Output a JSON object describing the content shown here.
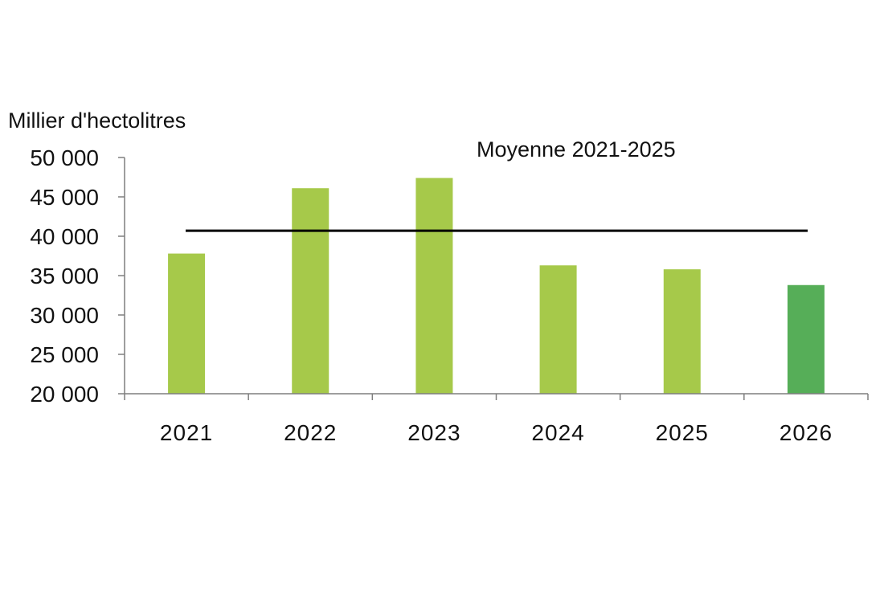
{
  "chart_data": {
    "type": "bar",
    "title": "",
    "xlabel": "",
    "ylabel": "Millier d'hectolitres",
    "ylim": [
      20000,
      50000
    ],
    "yticks": [
      20000,
      25000,
      30000,
      35000,
      40000,
      45000,
      50000
    ],
    "ytick_labels": [
      "20 000",
      "25 000",
      "30 000",
      "35 000",
      "40 000",
      "45 000",
      "50 000"
    ],
    "categories": [
      "2021",
      "2022",
      "2023",
      "2024",
      "2025",
      "2026"
    ],
    "values": [
      37800,
      46100,
      47400,
      36300,
      35800,
      33800
    ],
    "bar_colors": [
      "#a6c94a",
      "#a6c94a",
      "#a6c94a",
      "#a6c94a",
      "#a6c94a",
      "#56ae58"
    ],
    "grid": false,
    "reference_line": {
      "label": "Moyenne 2021-2025",
      "value": 40700,
      "color": "#000000"
    }
  }
}
